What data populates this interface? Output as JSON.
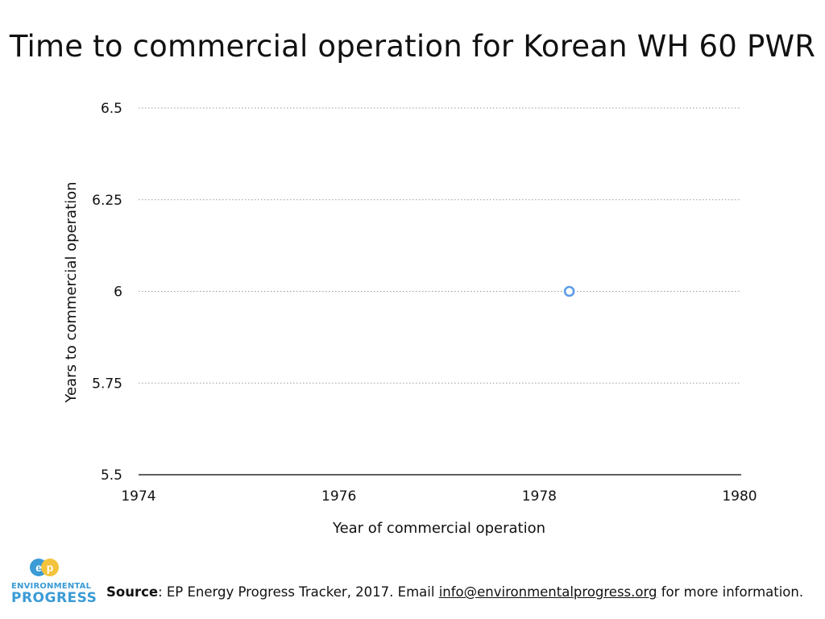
{
  "title": "Time to commercial operation for Korean WH 60 PWR",
  "chart_data": {
    "type": "scatter",
    "title": "Time to commercial operation for Korean WH 60 PWR",
    "xlabel": "Year of commercial operation",
    "ylabel": "Years to commercial operation",
    "xlim": [
      1974,
      1980
    ],
    "ylim": [
      5.5,
      6.5
    ],
    "x_ticks": [
      1974,
      1976,
      1978,
      1980
    ],
    "y_ticks": [
      {
        "value": 5.5,
        "label": "5.5"
      },
      {
        "value": 5.75,
        "label": "5.75"
      },
      {
        "value": 6,
        "label": "6"
      },
      {
        "value": 6.25,
        "label": "6.25"
      },
      {
        "value": 6.5,
        "label": "6.5"
      }
    ],
    "grid": "horizontal-dotted",
    "points": [
      {
        "x": 1978.3,
        "y": 6
      }
    ],
    "marker_color": "#5b9be6"
  },
  "logo": {
    "mark": "EP",
    "line1": "ENVIRONMENTAL",
    "line2": "PROGRESS"
  },
  "footer": {
    "source_label": "Source",
    "text_before": ": EP Energy Progress Tracker, 2017. Email ",
    "email": "info@environmentalprogress.org",
    "text_after": " for more information."
  }
}
